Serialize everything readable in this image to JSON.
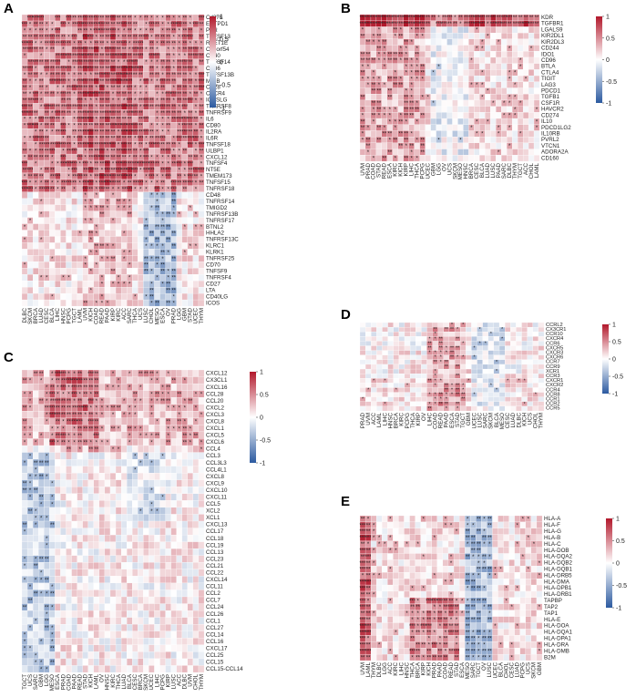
{
  "colors": {
    "high": "#b2182b",
    "mid": "#ffffff",
    "low": "#2c5aa0"
  },
  "chart_data": [
    {
      "type": "heatmap",
      "panel": "A",
      "legend_ticks": [
        "1",
        "0.5",
        "0",
        "-0.5",
        "-1"
      ],
      "zlim": [
        -1,
        1
      ],
      "rows": [
        "Cd276",
        "ENTPD1",
        "PVR",
        "TNFSF13",
        "RAET1E",
        "C10orf54",
        "CD40",
        "TNFSF14",
        "CD86",
        "TNFSF13B",
        "MICB",
        "CD28",
        "CXCR4",
        "ICOSLG",
        "TNFRSF8",
        "TNFRSF9",
        "IL6",
        "CD80",
        "IL2RA",
        "IL6R",
        "TNFSF18",
        "ULBP1",
        "CXCL12",
        "TNFSF4",
        "NT5E",
        "TMEM173",
        "TNFSF15",
        "TNFRSF18",
        "CD48",
        "TNFRSF14",
        "TMIGD2",
        "TNFRSF13B",
        "TNFRSF17",
        "BTNL2",
        "HHLA2",
        "TNFRSF13C",
        "KLRC1",
        "KLRK1",
        "TNFRSF25",
        "CD70",
        "TNFSF9",
        "TNFRSF4",
        "CD27",
        "LTA",
        "CD40LG",
        "ICOS"
      ],
      "columns": [
        "DLBC",
        "SKCM",
        "BRCA",
        "LUAD",
        "CESC",
        "BLCA",
        "LIHC",
        "HNSC",
        "PCPG",
        "TGCT",
        "LAML",
        "UVM",
        "KICH",
        "COAD",
        "READ",
        "PAAD",
        "KIRP",
        "KIRC",
        "ACC",
        "SARC",
        "THCA",
        "UCS",
        "LUSC",
        "CHOL",
        "MESO",
        "ESCA",
        "OV",
        "PRAD",
        "LGG",
        "GBM",
        "STAD",
        "UCEC",
        "THYM"
      ]
    },
    {
      "type": "heatmap",
      "panel": "B",
      "legend_ticks": [
        "1",
        "0.5",
        "0",
        "-0.5",
        "-1"
      ],
      "zlim": [
        -1,
        1
      ],
      "rows": [
        "KDR",
        "TGFBR1",
        "LGALS9",
        "KIR2DL1",
        "KIR2DL3",
        "CD244",
        "IDO1",
        "CD96",
        "BTLA",
        "CTLA4",
        "TIGIT",
        "LAG3",
        "PDCD1",
        "TGFB1",
        "CSF1R",
        "HAVCR2",
        "CD274",
        "IL10",
        "PDCD1LG2",
        "IL10RB",
        "PVRL2",
        "VTCN1",
        "ADORA2A",
        "CD160"
      ],
      "columns": [
        "UVM",
        "PRAD",
        "COAD",
        "STAD",
        "READ",
        "ESCA",
        "KIRC",
        "KICH",
        "KIRP",
        "LIHC",
        "THCA",
        "PCPG",
        "UCEC",
        "GBM",
        "LGG",
        "OV",
        "UCS",
        "SKCM",
        "MESO",
        "HNSC",
        "BRCA",
        "CESC",
        "BLCA",
        "LUAD",
        "LUSC",
        "PAAD",
        "SARC",
        "DLBC",
        "THYM",
        "TGCT",
        "ACC",
        "CHOL",
        "LAML"
      ]
    },
    {
      "type": "heatmap",
      "panel": "C",
      "legend_ticks": [
        "1",
        "0.5",
        "0",
        "-0.5",
        "-1"
      ],
      "zlim": [
        -1,
        1
      ],
      "rows": [
        "CXCL12",
        "CX3CL1",
        "CXCL16",
        "CCL28",
        "CCL20",
        "CXCL2",
        "CXCL3",
        "CXCL8",
        "CXCL1",
        "CXCL5",
        "CXCL6",
        "CCL4",
        "CCL3",
        "CCL3L3",
        "CCL4L1",
        "CXCL8",
        "CXCL9",
        "CXCL10",
        "CXCL11",
        "CCL5",
        "XCL2",
        "XCL1",
        "CXCL13",
        "CCL17",
        "CCL18",
        "CCL19",
        "CCL13",
        "CCL23",
        "CCL21",
        "CCL22",
        "CXCL14",
        "CCL11",
        "CCL2",
        "CCL7",
        "CCL24",
        "CCL26",
        "CCL1",
        "CCL27",
        "CCL14",
        "CCL16",
        "CXCL17",
        "CCL25",
        "CCL15",
        "CCL15-CCL14"
      ],
      "columns": [
        "TGCT",
        "UCS",
        "SARC",
        "GBM",
        "LGG",
        "MESO",
        "ESCA",
        "PRAD",
        "COAD",
        "PAAD",
        "READ",
        "STAD",
        "KICH",
        "LAML",
        "OV",
        "HNSC",
        "KIRC",
        "THCA",
        "LUAD",
        "BLCA",
        "CESC",
        "BRCA",
        "SKCM",
        "UCEC",
        "LIHC",
        "PCPG",
        "KIRP",
        "LUSC",
        "ACC",
        "DLBC",
        "UVM",
        "CHOL",
        "THYM"
      ]
    },
    {
      "type": "heatmap",
      "panel": "D",
      "legend_ticks": [
        "1",
        "0.5",
        "0",
        "-0.5",
        "-1"
      ],
      "zlim": [
        -1,
        1
      ],
      "rows": [
        "CCRL2",
        "CX3CR1",
        "CCR10",
        "CXCR4",
        "CCR6",
        "CXCR5",
        "CXCR3",
        "CXCR6",
        "CCR7",
        "CCR9",
        "XCR1",
        "CCR3",
        "CXCR1",
        "CXCR2",
        "CCR4",
        "CCR8",
        "CCR1",
        "CCR2",
        "CCR5"
      ],
      "columns": [
        "PRAD",
        "UVM",
        "ACC",
        "LAML",
        "LIHC",
        "HNSC",
        "BRCA",
        "KIRC",
        "PCPG",
        "THCA",
        "KIRP",
        "OV",
        "LIHC",
        "COAD",
        "READ",
        "PAAD",
        "ESCA",
        "STAD",
        "TGCT",
        "GBM",
        "UCEC",
        "LUSC",
        "SARC",
        "SKCM",
        "BLCA",
        "MESO",
        "CESC",
        "LUAD",
        "DLBC",
        "KICH",
        "UCS",
        "CHOL",
        "THYM"
      ]
    },
    {
      "type": "heatmap",
      "panel": "E",
      "legend_ticks": [
        "1",
        "0.5",
        "0",
        "-0.5",
        "-1"
      ],
      "zlim": [
        -1,
        1
      ],
      "rows": [
        "HLA-A",
        "HLA-F",
        "HLA-G",
        "HLA-B",
        "HLA-C",
        "HLA-DOB",
        "HLA-DQA2",
        "HLA-DQB2",
        "HLA-DQB1",
        "HLA-DRB5",
        "HLA-DMA",
        "HLA-DPB1",
        "HLA-DRB1",
        "TAPBP",
        "TAP2",
        "TAP1",
        "HLA-E",
        "HLA-DOA",
        "HLA-DQA1",
        "HLA-DPA1",
        "HLA-DRA",
        "HLA-DMB",
        "B2M"
      ],
      "columns": [
        "UVM",
        "LAML",
        "THYM",
        "DLBC",
        "LGG",
        "ACC",
        "KIRC",
        "LIHC",
        "HNSC",
        "THCA",
        "BRCA",
        "KIRP",
        "KICH",
        "PRAD",
        "PAAD",
        "COAD",
        "READ",
        "STAD",
        "ESCA",
        "MESO",
        "SARC",
        "TGCT",
        "OV",
        "LUSC",
        "UCEC",
        "BLCA",
        "CHOL",
        "CESC",
        "LUAD",
        "PCPG",
        "UCS",
        "SKCM",
        "GBM"
      ]
    }
  ]
}
